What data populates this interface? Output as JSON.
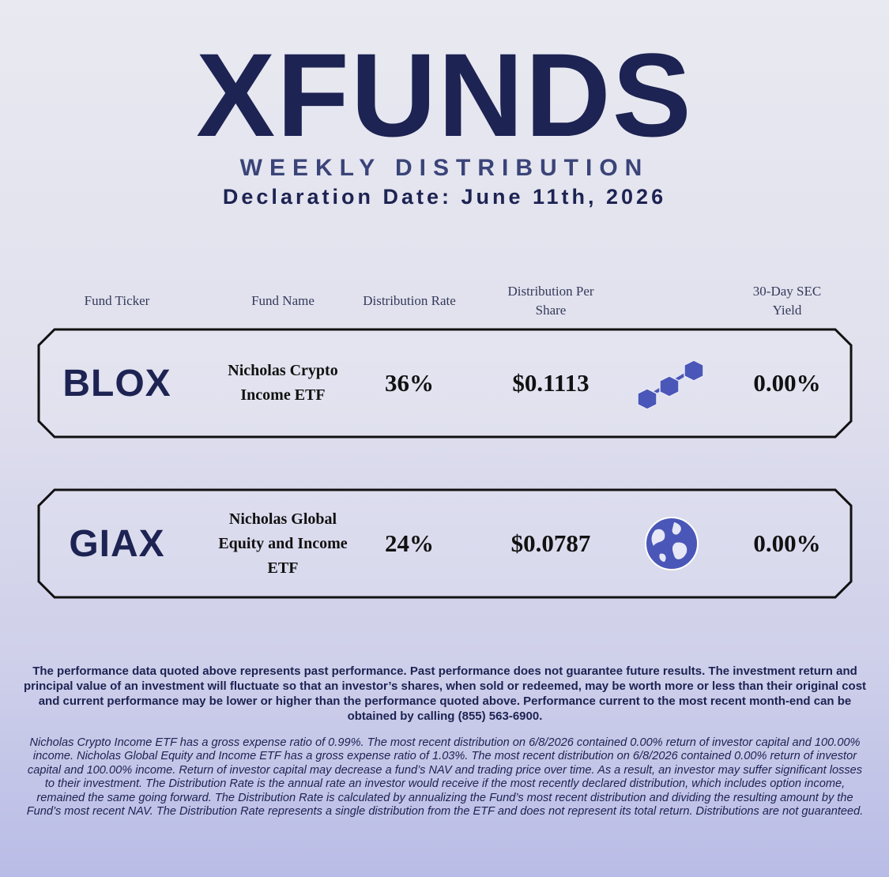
{
  "header": {
    "logo": "XFUNDS",
    "title": "WEEKLY DISTRIBUTION",
    "declaration": "Declaration Date: June 11th, 2026"
  },
  "table": {
    "columns": [
      "Fund Ticker",
      "Fund Name",
      "Distribution Rate",
      "Distribution Per Share",
      "30-Day SEC Yield"
    ],
    "rows": [
      [
        "BLOX",
        "Nicholas Crypto Income ETF",
        "36%",
        "$0.1113",
        "0.00%"
      ],
      [
        "GIAX",
        "Nicholas Global Equity and Income ETF",
        "24%",
        "$0.0787",
        "0.00%"
      ]
    ]
  },
  "disclaimer": {
    "performance": "The performance data quoted above represents past performance. Past performance does not guarantee future results. The investment return and principal value of an investment will fluctuate so that an investor’s shares, when sold or redeemed, may be worth more or less than their original cost and current performance may be lower or higher than the performance quoted above. Performance current to the most recent month-end can be obtained by calling (855) 563-6900.",
    "details": "Nicholas Crypto Income ETF has a gross expense ratio of 0.99%. The most recent distribution on 6/8/2026 contained 0.00% return of investor capital and 100.00% income. Nicholas Global Equity and Income ETF has a gross expense ratio of 1.03%. The most recent distribution on 6/8/2026 contained 0.00% return of investor capital and 100.00% income. Return of investor capital may decrease a fund’s NAV and trading price over time. As a result, an investor may suffer significant losses to their investment. The Distribution Rate is the annual rate an investor would receive if the most recently declared distribution, which includes option income, remained the same going forward. The Distribution Rate is calculated by annualizing the Fund’s most recent distribution and dividing the resulting amount by the Fund’s most recent NAV. The Distribution Rate represents a single distribution from the ETF and does not represent its total return. Distributions are not guaranteed."
  }
}
